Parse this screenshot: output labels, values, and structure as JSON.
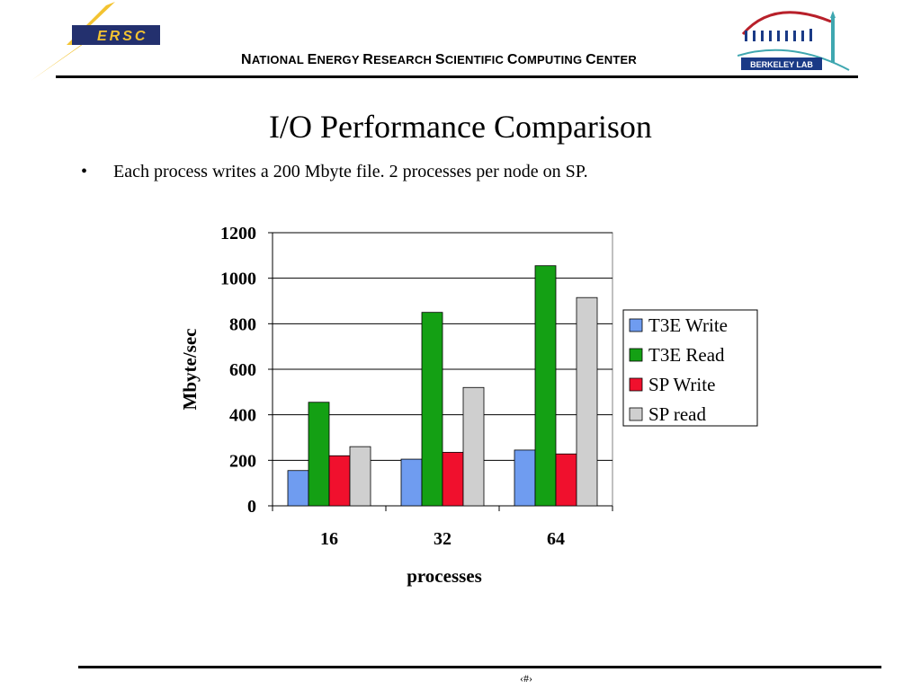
{
  "header": {
    "org_name": "National Energy Research Scientific Computing Center",
    "left_logo_text": "ERSC",
    "right_logo_text": "BERKELEY LAB"
  },
  "slide": {
    "title": "I/O Performance Comparison",
    "bullet_marker": "•",
    "bullet_text": "Each process writes a 200 Mbyte file. 2 processes per node on SP.",
    "page_number": "‹#›"
  },
  "colors": {
    "t3e_write": "#6f9cf0",
    "t3e_read": "#14a014",
    "sp_write": "#f0102d",
    "sp_read": "#cfcfcf",
    "nersc_gold": "#f3c331",
    "nersc_navy": "#23306e",
    "berkeley_red": "#b8202a",
    "berkeley_blue": "#1a3a86"
  },
  "chart_data": {
    "type": "bar",
    "categories": [
      "16",
      "32",
      "64"
    ],
    "series": [
      {
        "name": "T3E Write",
        "values": [
          155,
          205,
          245
        ]
      },
      {
        "name": "T3E Read",
        "values": [
          455,
          850,
          1055
        ]
      },
      {
        "name": "SP Write",
        "values": [
          220,
          235,
          228
        ]
      },
      {
        "name": "SP read",
        "values": [
          260,
          520,
          915
        ]
      }
    ],
    "xlabel": "processes",
    "ylabel": "Mbyte/sec",
    "ylim": [
      0,
      1200
    ],
    "yticks": [
      "0",
      "200",
      "400",
      "600",
      "800",
      "1000",
      "1200"
    ],
    "grid": true,
    "legend_position": "right"
  }
}
